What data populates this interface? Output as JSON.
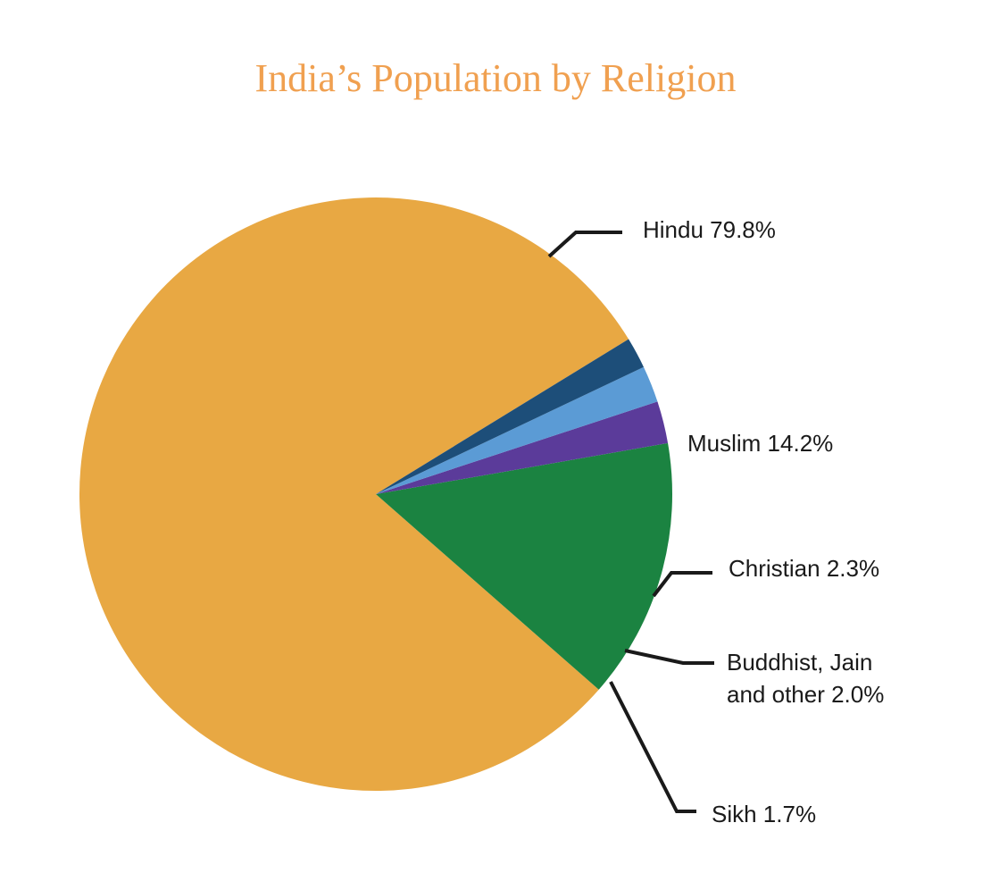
{
  "chart_data": {
    "type": "pie",
    "title": "India’s Population by Religion",
    "title_color": "#F0A050",
    "unit": "%",
    "slices": [
      {
        "label_lines": [
          "Hindu 79.8%"
        ],
        "value": 79.8,
        "color": "#E8A843"
      },
      {
        "label_lines": [
          "Muslim 14.2%"
        ],
        "value": 14.2,
        "color": "#1B8341"
      },
      {
        "label_lines": [
          "Christian 2.3%"
        ],
        "value": 2.3,
        "color": "#5B3B9A"
      },
      {
        "label_lines": [
          "Buddhist, Jain",
          "and other 2.0%"
        ],
        "value": 2.0,
        "color": "#5B9BD5"
      },
      {
        "label_lines": [
          "Sikh 1.7%"
        ],
        "value": 1.7,
        "color": "#1D4E79"
      }
    ]
  }
}
